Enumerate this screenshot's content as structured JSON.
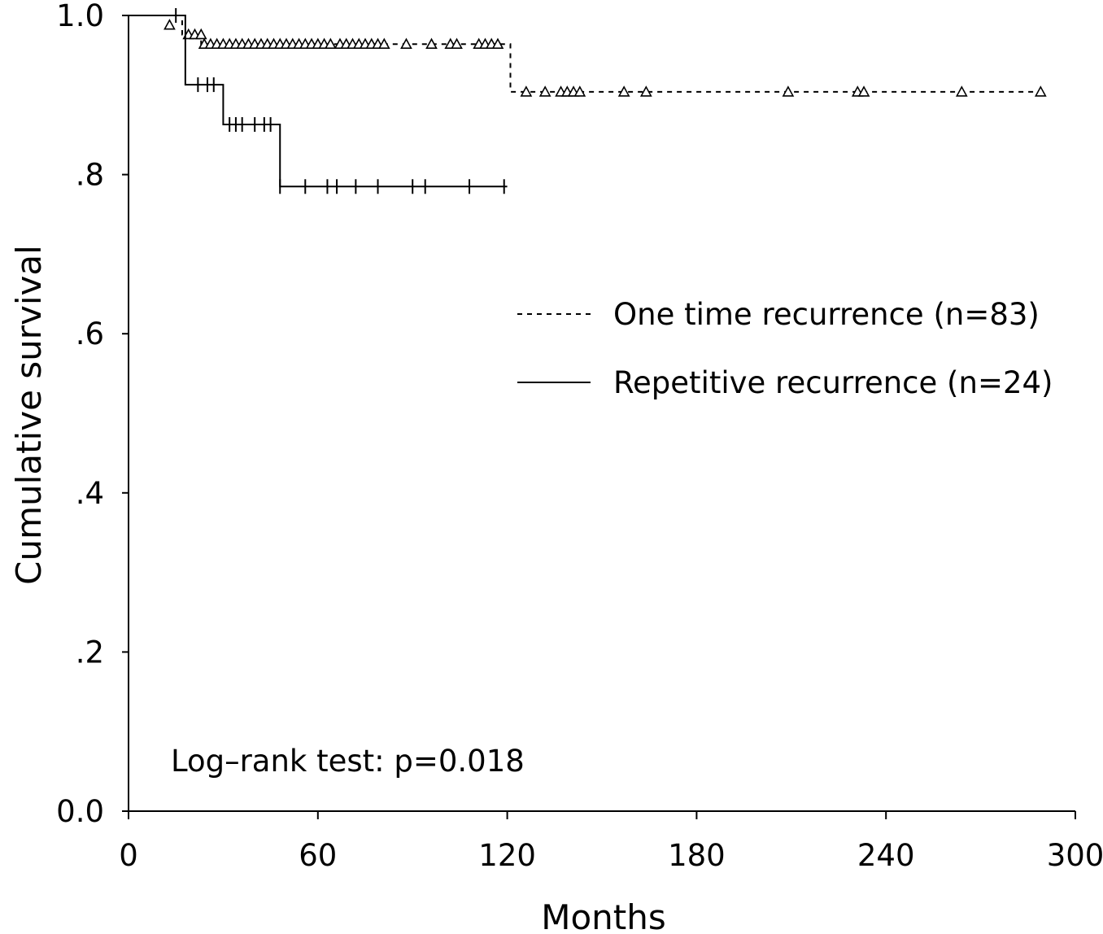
{
  "chart_data": {
    "type": "line",
    "subtype": "kaplan-meier",
    "title": "",
    "xlabel": "Months",
    "ylabel": "Cumulative survival",
    "xlim": [
      0,
      300
    ],
    "ylim": [
      0,
      1.0
    ],
    "x_ticks": [
      0,
      60,
      120,
      180,
      240,
      300
    ],
    "x_tick_labels": [
      "0",
      "60",
      "120",
      "180",
      "240",
      "300"
    ],
    "y_ticks": [
      0,
      0.2,
      0.4,
      0.6,
      0.8,
      1.0
    ],
    "y_tick_labels": [
      "0.0",
      ".2",
      ".4",
      ".6",
      ".8",
      "1.0"
    ],
    "grid": false,
    "legend_position": "right-middle",
    "annotation": "Log–rank test: p=0.018",
    "series": [
      {
        "name": "One time recurrence (n=83)",
        "line_style": "dashed",
        "censor_marker": "triangle",
        "color": "#000000",
        "steps": [
          [
            0,
            1.0
          ],
          [
            17,
            0.976
          ],
          [
            23,
            0.964
          ],
          [
            121,
            0.904
          ],
          [
            290,
            0.904
          ]
        ],
        "censored": [
          [
            13,
            0.988
          ],
          [
            19,
            0.976
          ],
          [
            21,
            0.976
          ],
          [
            23,
            0.976
          ],
          [
            24,
            0.964
          ],
          [
            26,
            0.964
          ],
          [
            28,
            0.964
          ],
          [
            30,
            0.964
          ],
          [
            32,
            0.964
          ],
          [
            34,
            0.964
          ],
          [
            36,
            0.964
          ],
          [
            38,
            0.964
          ],
          [
            40,
            0.964
          ],
          [
            42,
            0.964
          ],
          [
            44,
            0.964
          ],
          [
            46,
            0.964
          ],
          [
            48,
            0.964
          ],
          [
            50,
            0.964
          ],
          [
            52,
            0.964
          ],
          [
            54,
            0.964
          ],
          [
            56,
            0.964
          ],
          [
            58,
            0.964
          ],
          [
            60,
            0.964
          ],
          [
            62,
            0.964
          ],
          [
            64,
            0.964
          ],
          [
            67,
            0.964
          ],
          [
            69,
            0.964
          ],
          [
            71,
            0.964
          ],
          [
            73,
            0.964
          ],
          [
            75,
            0.964
          ],
          [
            77,
            0.964
          ],
          [
            79,
            0.964
          ],
          [
            81,
            0.964
          ],
          [
            88,
            0.964
          ],
          [
            96,
            0.964
          ],
          [
            102,
            0.964
          ],
          [
            104,
            0.964
          ],
          [
            111,
            0.964
          ],
          [
            113,
            0.964
          ],
          [
            115,
            0.964
          ],
          [
            117,
            0.964
          ],
          [
            126,
            0.904
          ],
          [
            132,
            0.904
          ],
          [
            137,
            0.904
          ],
          [
            139,
            0.904
          ],
          [
            141,
            0.904
          ],
          [
            143,
            0.904
          ],
          [
            157,
            0.904
          ],
          [
            164,
            0.904
          ],
          [
            209,
            0.904
          ],
          [
            231,
            0.904
          ],
          [
            233,
            0.904
          ],
          [
            264,
            0.904
          ],
          [
            289,
            0.904
          ]
        ]
      },
      {
        "name": "Repetitive recurrence (n=24)",
        "line_style": "solid",
        "censor_marker": "tick",
        "color": "#000000",
        "steps": [
          [
            0,
            1.0
          ],
          [
            18,
            0.913
          ],
          [
            30,
            0.863
          ],
          [
            48,
            0.785
          ],
          [
            120,
            0.785
          ]
        ],
        "censored": [
          [
            15,
            1.0
          ],
          [
            22,
            0.913
          ],
          [
            25,
            0.913
          ],
          [
            27,
            0.913
          ],
          [
            32,
            0.863
          ],
          [
            34,
            0.863
          ],
          [
            36,
            0.863
          ],
          [
            40,
            0.863
          ],
          [
            43,
            0.863
          ],
          [
            45,
            0.863
          ],
          [
            48,
            0.785
          ],
          [
            56,
            0.785
          ],
          [
            63,
            0.785
          ],
          [
            66,
            0.785
          ],
          [
            72,
            0.785
          ],
          [
            79,
            0.785
          ],
          [
            90,
            0.785
          ],
          [
            94,
            0.785
          ],
          [
            108,
            0.785
          ],
          [
            119,
            0.785
          ]
        ]
      }
    ]
  }
}
